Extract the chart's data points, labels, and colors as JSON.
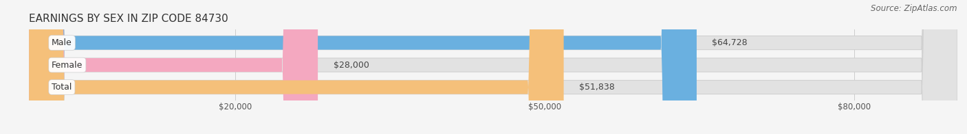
{
  "title": "EARNINGS BY SEX IN ZIP CODE 84730",
  "source": "Source: ZipAtlas.com",
  "categories": [
    "Male",
    "Female",
    "Total"
  ],
  "values": [
    64728,
    28000,
    51838
  ],
  "value_labels": [
    "$64,728",
    "$28,000",
    "$51,838"
  ],
  "bar_colors": [
    "#6ab0e0",
    "#f4a8c0",
    "#f5c07a"
  ],
  "xmin": 0,
  "xmax": 90000,
  "xticks": [
    20000,
    50000,
    80000
  ],
  "xtick_labels": [
    "$20,000",
    "$50,000",
    "$80,000"
  ],
  "background_color": "#f5f5f5",
  "bar_bg_color": "#e0e0e0",
  "title_fontsize": 11,
  "label_fontsize": 9,
  "source_fontsize": 8.5,
  "value_label_inside_color": "white",
  "value_label_outside_color": "#444444",
  "inside_threshold": 75000
}
